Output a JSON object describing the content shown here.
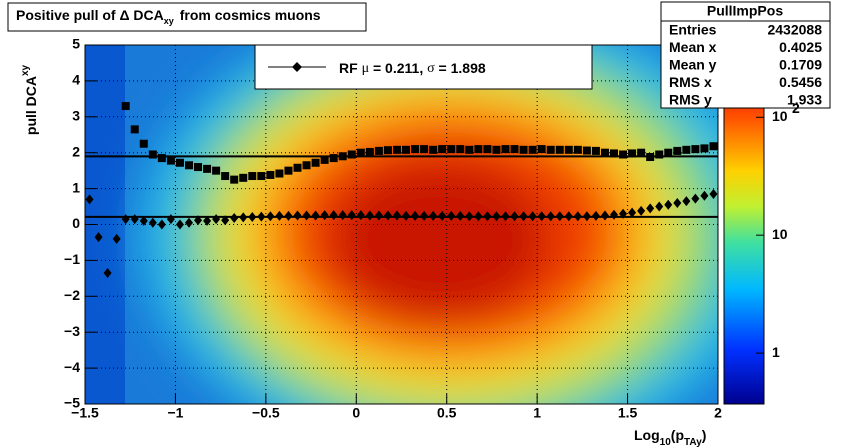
{
  "chart_data": {
    "type": "profile2d",
    "title": {
      "prefix": "Positive pull of Δ DCA",
      "sub": "xy",
      "suffix": "from cosmics muons"
    },
    "y_label": {
      "main": "pull DCA",
      "sub": "xy"
    },
    "x_label": {
      "a": "Log",
      "sub1": "10",
      "b": "(p",
      "sub2": "TAy",
      "c": ")"
    },
    "xlim": [
      -1.5,
      2
    ],
    "ylim": [
      -5,
      5
    ],
    "xticks": [
      {
        "value": -1.5,
        "label": "−1.5"
      },
      {
        "value": -1,
        "label": "−1"
      },
      {
        "value": -0.5,
        "label": "−0.5"
      },
      0,
      0.5,
      1,
      1.5,
      2
    ],
    "yticks": [
      {
        "value": -5,
        "label": "−5"
      },
      {
        "value": -4,
        "label": "−4"
      },
      {
        "value": -3,
        "label": "−3"
      },
      {
        "value": -2,
        "label": "−2"
      },
      {
        "value": -1,
        "label": "−1"
      },
      0,
      1,
      2,
      3,
      4,
      5
    ],
    "zlim": [
      0.37,
      410
    ],
    "zlog": true,
    "zticks": [
      1,
      10,
      {
        "value": 100,
        "label": "10",
        "exponent": "2"
      }
    ],
    "grid": true,
    "x": [
      -1.475,
      -1.425,
      -1.375,
      -1.325,
      -1.275,
      -1.225,
      -1.175,
      -1.125,
      -1.075,
      -1.025,
      -0.975,
      -0.925,
      -0.875,
      -0.825,
      -0.775,
      -0.725,
      -0.675,
      -0.625,
      -0.575,
      -0.525,
      -0.475,
      -0.425,
      -0.375,
      -0.325,
      -0.275,
      -0.225,
      -0.175,
      -0.125,
      -0.075,
      -0.025,
      0.025,
      0.075,
      0.125,
      0.175,
      0.225,
      0.275,
      0.325,
      0.375,
      0.425,
      0.475,
      0.525,
      0.575,
      0.625,
      0.675,
      0.725,
      0.775,
      0.825,
      0.875,
      0.925,
      0.975,
      1.025,
      1.075,
      1.125,
      1.175,
      1.225,
      1.275,
      1.325,
      1.375,
      1.425,
      1.475,
      1.525,
      1.575,
      1.625,
      1.675,
      1.725,
      1.775,
      1.825,
      1.875,
      1.925,
      1.975
    ],
    "series": [
      {
        "name": "mean",
        "marker": "diamond",
        "color": "#000000",
        "values": [
          0.7,
          -0.35,
          -1.35,
          -0.4,
          0.15,
          0.15,
          0.1,
          0.05,
          0.0,
          0.15,
          0.0,
          0.05,
          0.12,
          0.1,
          0.15,
          0.12,
          0.18,
          0.2,
          0.21,
          0.22,
          0.23,
          0.24,
          0.24,
          0.25,
          0.25,
          0.25,
          0.26,
          0.26,
          0.26,
          0.26,
          0.26,
          0.25,
          0.25,
          0.25,
          0.25,
          0.24,
          0.24,
          0.24,
          0.24,
          0.24,
          0.24,
          0.24,
          0.23,
          0.23,
          0.23,
          0.23,
          0.23,
          0.23,
          0.23,
          0.23,
          0.23,
          0.23,
          0.23,
          0.23,
          0.23,
          0.23,
          0.24,
          0.25,
          0.27,
          0.3,
          0.33,
          0.38,
          0.45,
          0.5,
          0.55,
          0.6,
          0.65,
          0.72,
          0.8,
          0.85
        ]
      },
      {
        "name": "rms",
        "marker": "square",
        "color": "#000000",
        "values": [
          null,
          null,
          null,
          null,
          3.3,
          2.65,
          2.25,
          1.95,
          1.85,
          1.78,
          1.72,
          1.65,
          1.6,
          1.55,
          1.5,
          1.35,
          1.25,
          1.3,
          1.35,
          1.35,
          1.38,
          1.42,
          1.5,
          1.58,
          1.65,
          1.72,
          1.8,
          1.85,
          1.9,
          1.95,
          2.0,
          2.02,
          2.05,
          2.07,
          2.08,
          2.08,
          2.1,
          2.1,
          2.08,
          2.1,
          2.1,
          2.1,
          2.08,
          2.1,
          2.1,
          2.08,
          2.1,
          2.1,
          2.08,
          2.08,
          2.1,
          2.08,
          2.08,
          2.08,
          2.08,
          2.06,
          2.05,
          2.0,
          1.98,
          1.95,
          1.98,
          2.0,
          1.88,
          1.95,
          2.0,
          2.05,
          2.08,
          2.1,
          2.12,
          2.18
        ]
      }
    ],
    "legend": {
      "rf": "RF",
      "mu_sym": "μ",
      "eq": "=",
      "mu": 0.211,
      "comma": ",",
      "sigma_sym": "σ",
      "sigma": 1.898
    },
    "stats": {
      "title": "PullImpPos",
      "rows": [
        {
          "label": "Entries",
          "value": 2432088
        },
        {
          "label": "Mean x",
          "value": 0.4025
        },
        {
          "label": "Mean y",
          "value": 0.1709
        },
        {
          "label": "RMS x",
          "value": 0.5456
        },
        {
          "label": "RMS y",
          "value": 1.933
        }
      ]
    }
  }
}
